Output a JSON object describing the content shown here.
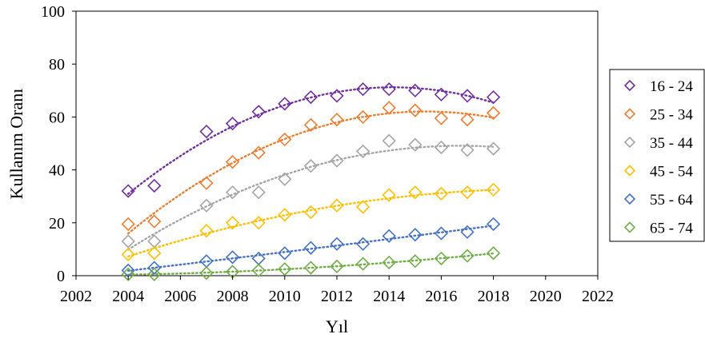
{
  "chart_data": {
    "type": "scatter",
    "title": "",
    "xlabel": "Yıl",
    "ylabel": "Kullanım Oranı",
    "xlim": [
      2002,
      2022
    ],
    "ylim": [
      0,
      100
    ],
    "xticks": [
      2002,
      2004,
      2006,
      2008,
      2010,
      2012,
      2014,
      2016,
      2018,
      2020,
      2022
    ],
    "yticks": [
      0,
      20,
      40,
      60,
      80,
      100
    ],
    "grid": false,
    "legend_position": "right",
    "trendline": "polynomial (dotted)",
    "x": [
      2004,
      2005,
      2007,
      2008,
      2009,
      2010,
      2011,
      2012,
      2013,
      2014,
      2015,
      2016,
      2017,
      2018
    ],
    "series": [
      {
        "name": "16 - 24",
        "color": "#7030A0",
        "values": [
          32,
          34,
          54.5,
          57.5,
          62,
          65,
          67.5,
          68,
          70.5,
          70.5,
          70,
          68.5,
          68,
          67.5
        ]
      },
      {
        "name": "25 - 34",
        "color": "#ED7D31",
        "values": [
          19.5,
          20.5,
          35,
          43,
          46.5,
          51.5,
          57,
          59,
          60,
          63.5,
          62.5,
          59.5,
          59,
          61.5
        ]
      },
      {
        "name": "35 - 44",
        "color": "#A5A5A5",
        "values": [
          13,
          13,
          26.5,
          31.5,
          31.5,
          36.5,
          41.5,
          43.5,
          47,
          51,
          49.5,
          48.5,
          47.5,
          48
        ]
      },
      {
        "name": "45 - 54",
        "color": "#FFC000",
        "values": [
          8,
          8.5,
          17,
          20,
          20,
          23,
          24,
          26.5,
          26,
          30.5,
          31.5,
          31,
          31.5,
          32.5
        ]
      },
      {
        "name": "55 - 64",
        "color": "#4472C4",
        "values": [
          2,
          3,
          5.5,
          7,
          6.5,
          8.5,
          10.5,
          12,
          12,
          15,
          15.5,
          16,
          16.5,
          19.5
        ]
      },
      {
        "name": "65 - 74",
        "color": "#70AD47",
        "values": [
          0.5,
          0.5,
          1,
          1.5,
          2,
          2.5,
          3,
          3.5,
          4.5,
          5,
          5.5,
          6.5,
          7.5,
          8.5
        ]
      }
    ]
  }
}
